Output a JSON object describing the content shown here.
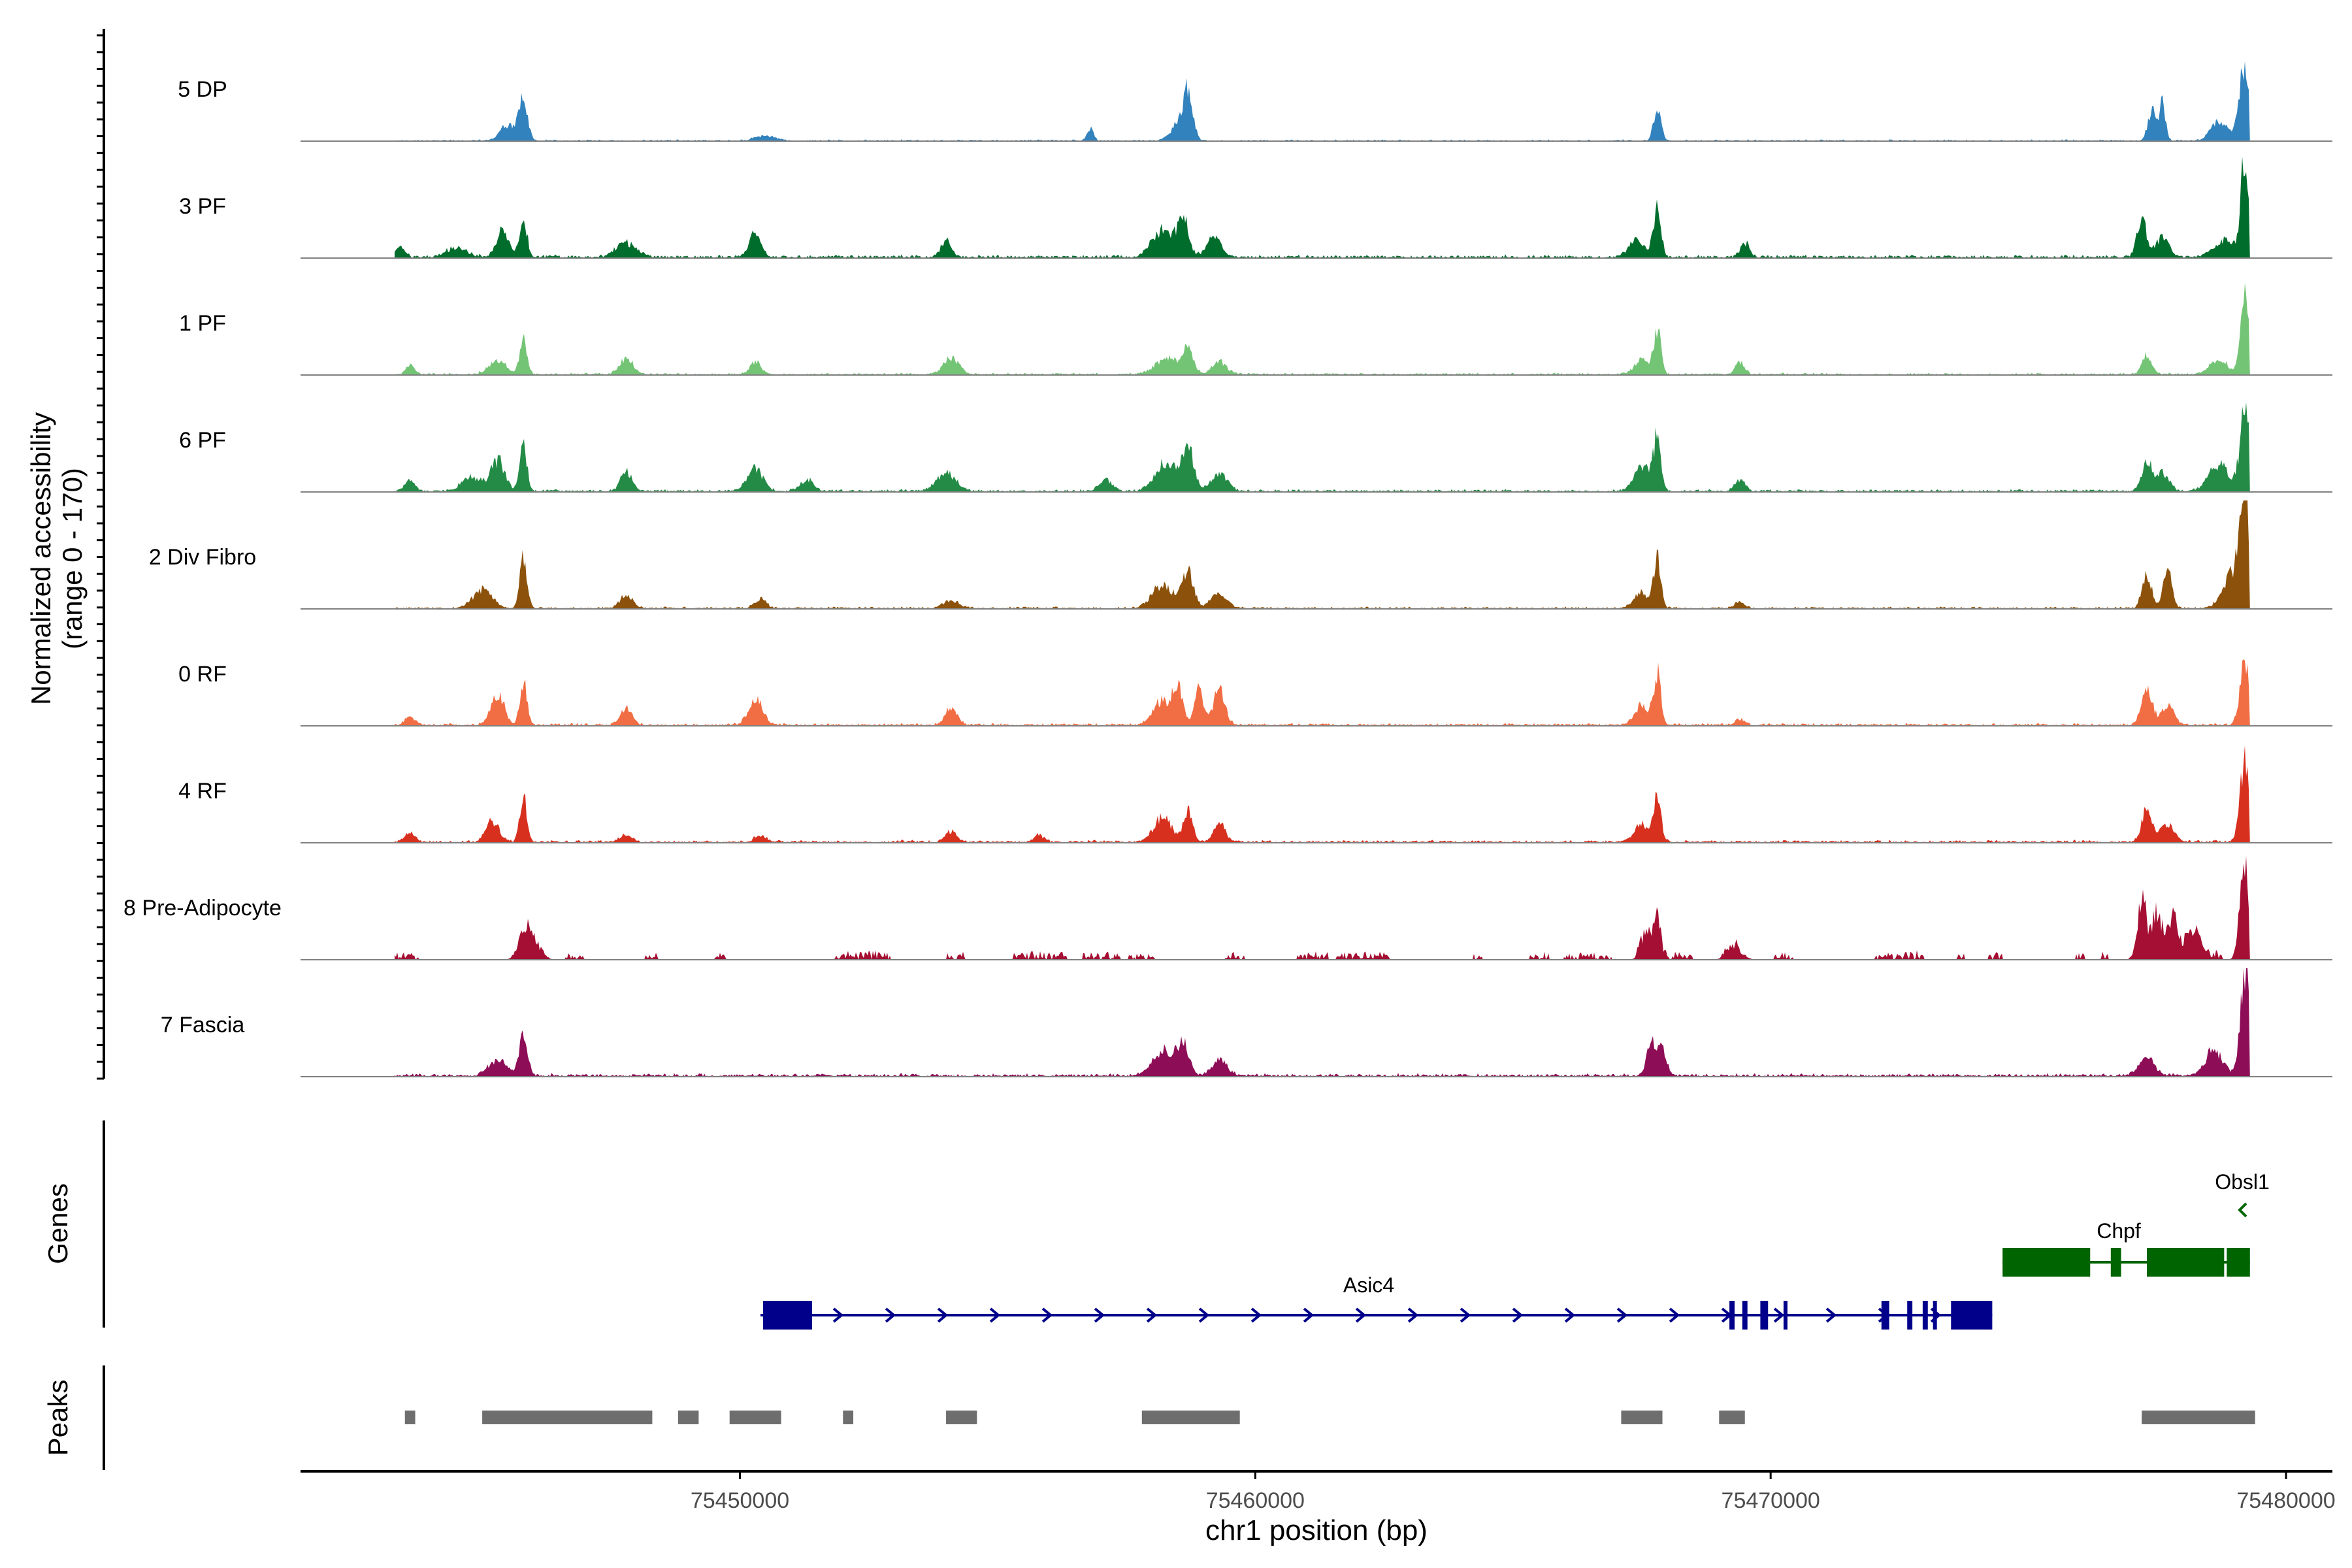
{
  "chart_data": {
    "type": "area",
    "xlabel": "chr1 position (bp)",
    "ylabel": "Normalized accessibility",
    "ylabel_range": "(range 0 - 170)",
    "ylim": [
      0,
      170
    ],
    "xlim": [
      75441500,
      75480900
    ],
    "track_start": 75443300,
    "track_end": 75479300,
    "x_ticks": [
      75450000,
      75460000,
      75470000,
      75480000
    ],
    "x_tick_labels": [
      "75450000",
      "75460000",
      "75470000",
      "75480000"
    ],
    "series": [
      {
        "name": "5 DP",
        "color": "#3182BD",
        "noise": 3,
        "sparse": false,
        "peaks": [
          [
            75445800,
            70,
            80
          ],
          [
            75445500,
            25,
            150
          ],
          [
            75450500,
            8,
            200
          ],
          [
            75456800,
            18,
            60
          ],
          [
            75458500,
            25,
            140
          ],
          [
            75458700,
            75,
            90
          ],
          [
            75467800,
            52,
            70
          ],
          [
            75477400,
            48,
            80
          ],
          [
            75477600,
            55,
            60
          ],
          [
            75478700,
            32,
            150
          ],
          [
            75479200,
            120,
            110
          ]
        ]
      },
      {
        "name": "3 PF",
        "color": "#006D2C",
        "noise": 6,
        "sparse": false,
        "peaks": [
          [
            75443400,
            18,
            90
          ],
          [
            75444500,
            14,
            200
          ],
          [
            75445400,
            42,
            120
          ],
          [
            75445800,
            60,
            70
          ],
          [
            75447800,
            22,
            200
          ],
          [
            75450300,
            40,
            110
          ],
          [
            75454000,
            24,
            100
          ],
          [
            75458200,
            42,
            200
          ],
          [
            75458600,
            60,
            110
          ],
          [
            75459200,
            32,
            140
          ],
          [
            75467400,
            28,
            150
          ],
          [
            75467800,
            82,
            70
          ],
          [
            75469500,
            22,
            90
          ],
          [
            75477200,
            60,
            90
          ],
          [
            75477600,
            30,
            130
          ],
          [
            75478800,
            25,
            200
          ],
          [
            75479200,
            150,
            80
          ]
        ]
      },
      {
        "name": "1 PF",
        "color": "#74C476",
        "noise": 4,
        "sparse": false,
        "peaks": [
          [
            75443600,
            14,
            80
          ],
          [
            75445300,
            22,
            170
          ],
          [
            75445800,
            58,
            70
          ],
          [
            75447800,
            26,
            130
          ],
          [
            75450300,
            20,
            110
          ],
          [
            75454100,
            26,
            150
          ],
          [
            75458300,
            28,
            220
          ],
          [
            75458700,
            38,
            100
          ],
          [
            75459300,
            20,
            140
          ],
          [
            75467500,
            22,
            140
          ],
          [
            75467800,
            70,
            70
          ],
          [
            75469400,
            20,
            90
          ],
          [
            75477300,
            30,
            90
          ],
          [
            75478700,
            22,
            170
          ],
          [
            75479200,
            130,
            80
          ]
        ]
      },
      {
        "name": "6 PF",
        "color": "#238B45",
        "noise": 5,
        "sparse": false,
        "peaks": [
          [
            75443600,
            16,
            100
          ],
          [
            75444800,
            22,
            190
          ],
          [
            75445300,
            48,
            130
          ],
          [
            75445800,
            68,
            70
          ],
          [
            75447800,
            30,
            110
          ],
          [
            75450300,
            35,
            150
          ],
          [
            75451300,
            18,
            130
          ],
          [
            75454000,
            26,
            190
          ],
          [
            75457100,
            18,
            120
          ],
          [
            75458300,
            48,
            210
          ],
          [
            75458700,
            64,
            110
          ],
          [
            75459300,
            28,
            160
          ],
          [
            75467500,
            40,
            150
          ],
          [
            75467800,
            82,
            70
          ],
          [
            75469400,
            18,
            100
          ],
          [
            75477300,
            45,
            100
          ],
          [
            75477600,
            28,
            130
          ],
          [
            75478700,
            42,
            200
          ],
          [
            75479200,
            130,
            90
          ]
        ]
      },
      {
        "name": "2 Div Fibro",
        "color": "#8C510A",
        "noise": 4,
        "sparse": false,
        "peaks": [
          [
            75445000,
            30,
            180
          ],
          [
            75445800,
            78,
            70
          ],
          [
            75447800,
            20,
            130
          ],
          [
            75450400,
            15,
            110
          ],
          [
            75454100,
            12,
            150
          ],
          [
            75458200,
            36,
            200
          ],
          [
            75458700,
            56,
            110
          ],
          [
            75459300,
            22,
            160
          ],
          [
            75467500,
            25,
            140
          ],
          [
            75467800,
            80,
            70
          ],
          [
            75469400,
            10,
            90
          ],
          [
            75477300,
            55,
            90
          ],
          [
            75477700,
            62,
            80
          ],
          [
            75479000,
            58,
            200
          ],
          [
            75479200,
            165,
            90
          ]
        ]
      },
      {
        "name": "0 RF",
        "color": "#F16D43",
        "noise": 5,
        "sparse": false,
        "peaks": [
          [
            75443600,
            12,
            100
          ],
          [
            75445300,
            48,
            130
          ],
          [
            75445800,
            70,
            70
          ],
          [
            75447800,
            28,
            110
          ],
          [
            75450300,
            40,
            140
          ],
          [
            75454100,
            28,
            110
          ],
          [
            75458200,
            40,
            170
          ],
          [
            75458500,
            58,
            90
          ],
          [
            75458900,
            60,
            90
          ],
          [
            75459300,
            55,
            110
          ],
          [
            75467500,
            30,
            140
          ],
          [
            75467800,
            78,
            70
          ],
          [
            75469400,
            10,
            90
          ],
          [
            75477300,
            55,
            100
          ],
          [
            75477700,
            28,
            130
          ],
          [
            75479200,
            105,
            90
          ]
        ]
      },
      {
        "name": "4 RF",
        "color": "#D7301F",
        "noise": 5,
        "sparse": false,
        "peaks": [
          [
            75443600,
            15,
            100
          ],
          [
            75445200,
            32,
            130
          ],
          [
            75445800,
            70,
            70
          ],
          [
            75447800,
            12,
            110
          ],
          [
            75450400,
            10,
            110
          ],
          [
            75454100,
            15,
            110
          ],
          [
            75455800,
            12,
            90
          ],
          [
            75458200,
            40,
            170
          ],
          [
            75458700,
            48,
            90
          ],
          [
            75459300,
            32,
            110
          ],
          [
            75467500,
            28,
            140
          ],
          [
            75467800,
            78,
            70
          ],
          [
            75477300,
            50,
            100
          ],
          [
            75477700,
            28,
            130
          ],
          [
            75479200,
            122,
            90
          ]
        ]
      },
      {
        "name": "8 Pre-Adipocyte",
        "color": "#A50F33",
        "noise": 10,
        "sparse": true,
        "peaks": [
          [
            75445800,
            40,
            110
          ],
          [
            75446000,
            28,
            140
          ],
          [
            75467600,
            40,
            110
          ],
          [
            75467800,
            70,
            70
          ],
          [
            75469300,
            18,
            150
          ],
          [
            75477200,
            90,
            90
          ],
          [
            75477500,
            70,
            110
          ],
          [
            75477800,
            62,
            100
          ],
          [
            75478200,
            40,
            160
          ],
          [
            75479200,
            150,
            90
          ]
        ]
      },
      {
        "name": "7 Fascia",
        "color": "#8E0D57",
        "noise": 6,
        "sparse": false,
        "peaks": [
          [
            75445300,
            25,
            170
          ],
          [
            75445800,
            68,
            80
          ],
          [
            75458200,
            38,
            200
          ],
          [
            75458600,
            56,
            110
          ],
          [
            75459300,
            25,
            150
          ],
          [
            75467700,
            55,
            90
          ],
          [
            75467900,
            38,
            80
          ],
          [
            75477300,
            28,
            150
          ],
          [
            75478600,
            40,
            170
          ],
          [
            75479200,
            165,
            90
          ]
        ]
      }
    ],
    "genes": [
      {
        "name": "Asic4",
        "color": "#00008B",
        "start": 75450400,
        "end": 75474300,
        "strand": "+",
        "row": 2,
        "exons": [
          [
            75450450,
            75451400
          ],
          [
            75469200,
            75469300
          ],
          [
            75469450,
            75469550
          ],
          [
            75469800,
            75469950
          ],
          [
            75470250,
            75470300
          ],
          [
            75472150,
            75472300
          ],
          [
            75472650,
            75472750
          ],
          [
            75472950,
            75473050
          ],
          [
            75473150,
            75473200
          ],
          [
            75473500,
            75474300
          ]
        ]
      },
      {
        "name": "Chpf",
        "color": "#006400",
        "start": 75474500,
        "end": 75479300,
        "strand": "-",
        "row": 1,
        "exons": [
          [
            75474500,
            75476200
          ],
          [
            75476600,
            75476800
          ],
          [
            75477300,
            75478800
          ],
          [
            75478850,
            75479300
          ]
        ]
      },
      {
        "name": "Obsl1",
        "color": "#006400",
        "start": 75479300,
        "end": 75479500,
        "strand": "-",
        "row": 0,
        "exons": []
      }
    ],
    "peaks": [
      [
        75443500,
        75443700
      ],
      [
        75445000,
        75448300
      ],
      [
        75448800,
        75449200
      ],
      [
        75449800,
        75450800
      ],
      [
        75452000,
        75452200
      ],
      [
        75454000,
        75454600
      ],
      [
        75457800,
        75459700
      ],
      [
        75467100,
        75467900
      ],
      [
        75469000,
        75469500
      ],
      [
        75477200,
        75479400
      ]
    ],
    "panel_labels": {
      "genes": "Genes",
      "peaks": "Peaks"
    },
    "legend": "none",
    "grid": false
  }
}
